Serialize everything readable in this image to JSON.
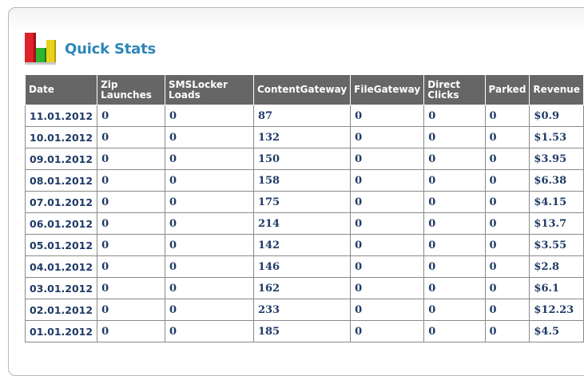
{
  "header": {
    "title": "Quick Stats"
  },
  "table": {
    "columns": [
      "Date",
      "Zip Launches",
      "SMSLocker Loads",
      "ContentGateway",
      "FileGateway",
      "Direct Clicks",
      "Parked",
      "Revenue"
    ],
    "rows": [
      [
        "11.01.2012",
        "0",
        "0",
        "87",
        "0",
        "0",
        "0",
        "$0.9"
      ],
      [
        "10.01.2012",
        "0",
        "0",
        "132",
        "0",
        "0",
        "0",
        "$1.53"
      ],
      [
        "09.01.2012",
        "0",
        "0",
        "150",
        "0",
        "0",
        "0",
        "$3.95"
      ],
      [
        "08.01.2012",
        "0",
        "0",
        "158",
        "0",
        "0",
        "0",
        "$6.38"
      ],
      [
        "07.01.2012",
        "0",
        "0",
        "175",
        "0",
        "0",
        "0",
        "$4.15"
      ],
      [
        "06.01.2012",
        "0",
        "0",
        "214",
        "0",
        "0",
        "0",
        "$13.7"
      ],
      [
        "05.01.2012",
        "0",
        "0",
        "142",
        "0",
        "0",
        "0",
        "$3.55"
      ],
      [
        "04.01.2012",
        "0",
        "0",
        "146",
        "0",
        "0",
        "0",
        "$2.8"
      ],
      [
        "03.01.2012",
        "0",
        "0",
        "162",
        "0",
        "0",
        "0",
        "$6.1"
      ],
      [
        "02.01.2012",
        "0",
        "0",
        "233",
        "0",
        "0",
        "0",
        "$12.23"
      ],
      [
        "01.01.2012",
        "0",
        "0",
        "185",
        "0",
        "0",
        "0",
        "$4.5"
      ]
    ]
  },
  "icon": {
    "name": "bar-chart-icon",
    "colors": [
      "#e0202a",
      "#2fb52f",
      "#e8d21c"
    ]
  }
}
